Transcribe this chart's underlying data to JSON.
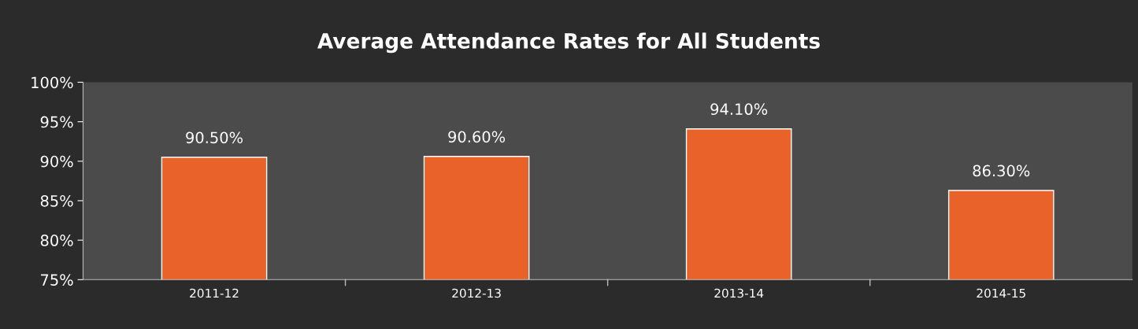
{
  "chart_data": {
    "type": "bar",
    "title": "Average Attendance Rates for All Students",
    "categories": [
      "2011-12",
      "2012-13",
      "2013-14",
      "2014-15"
    ],
    "values": [
      90.5,
      90.6,
      94.1,
      86.3
    ],
    "value_labels": [
      "90.50%",
      "90.60%",
      "94.10%",
      "86.30%"
    ],
    "color": "#e8622a",
    "ylim": [
      75,
      100
    ],
    "yticks": [
      {
        "value": 75,
        "label": "75%"
      },
      {
        "value": 80,
        "label": "80%"
      },
      {
        "value": 85,
        "label": "85%"
      },
      {
        "value": 90,
        "label": "90%"
      },
      {
        "value": 95,
        "label": "95%"
      },
      {
        "value": 100,
        "label": "100%"
      }
    ],
    "grid": false,
    "legend": false
  }
}
